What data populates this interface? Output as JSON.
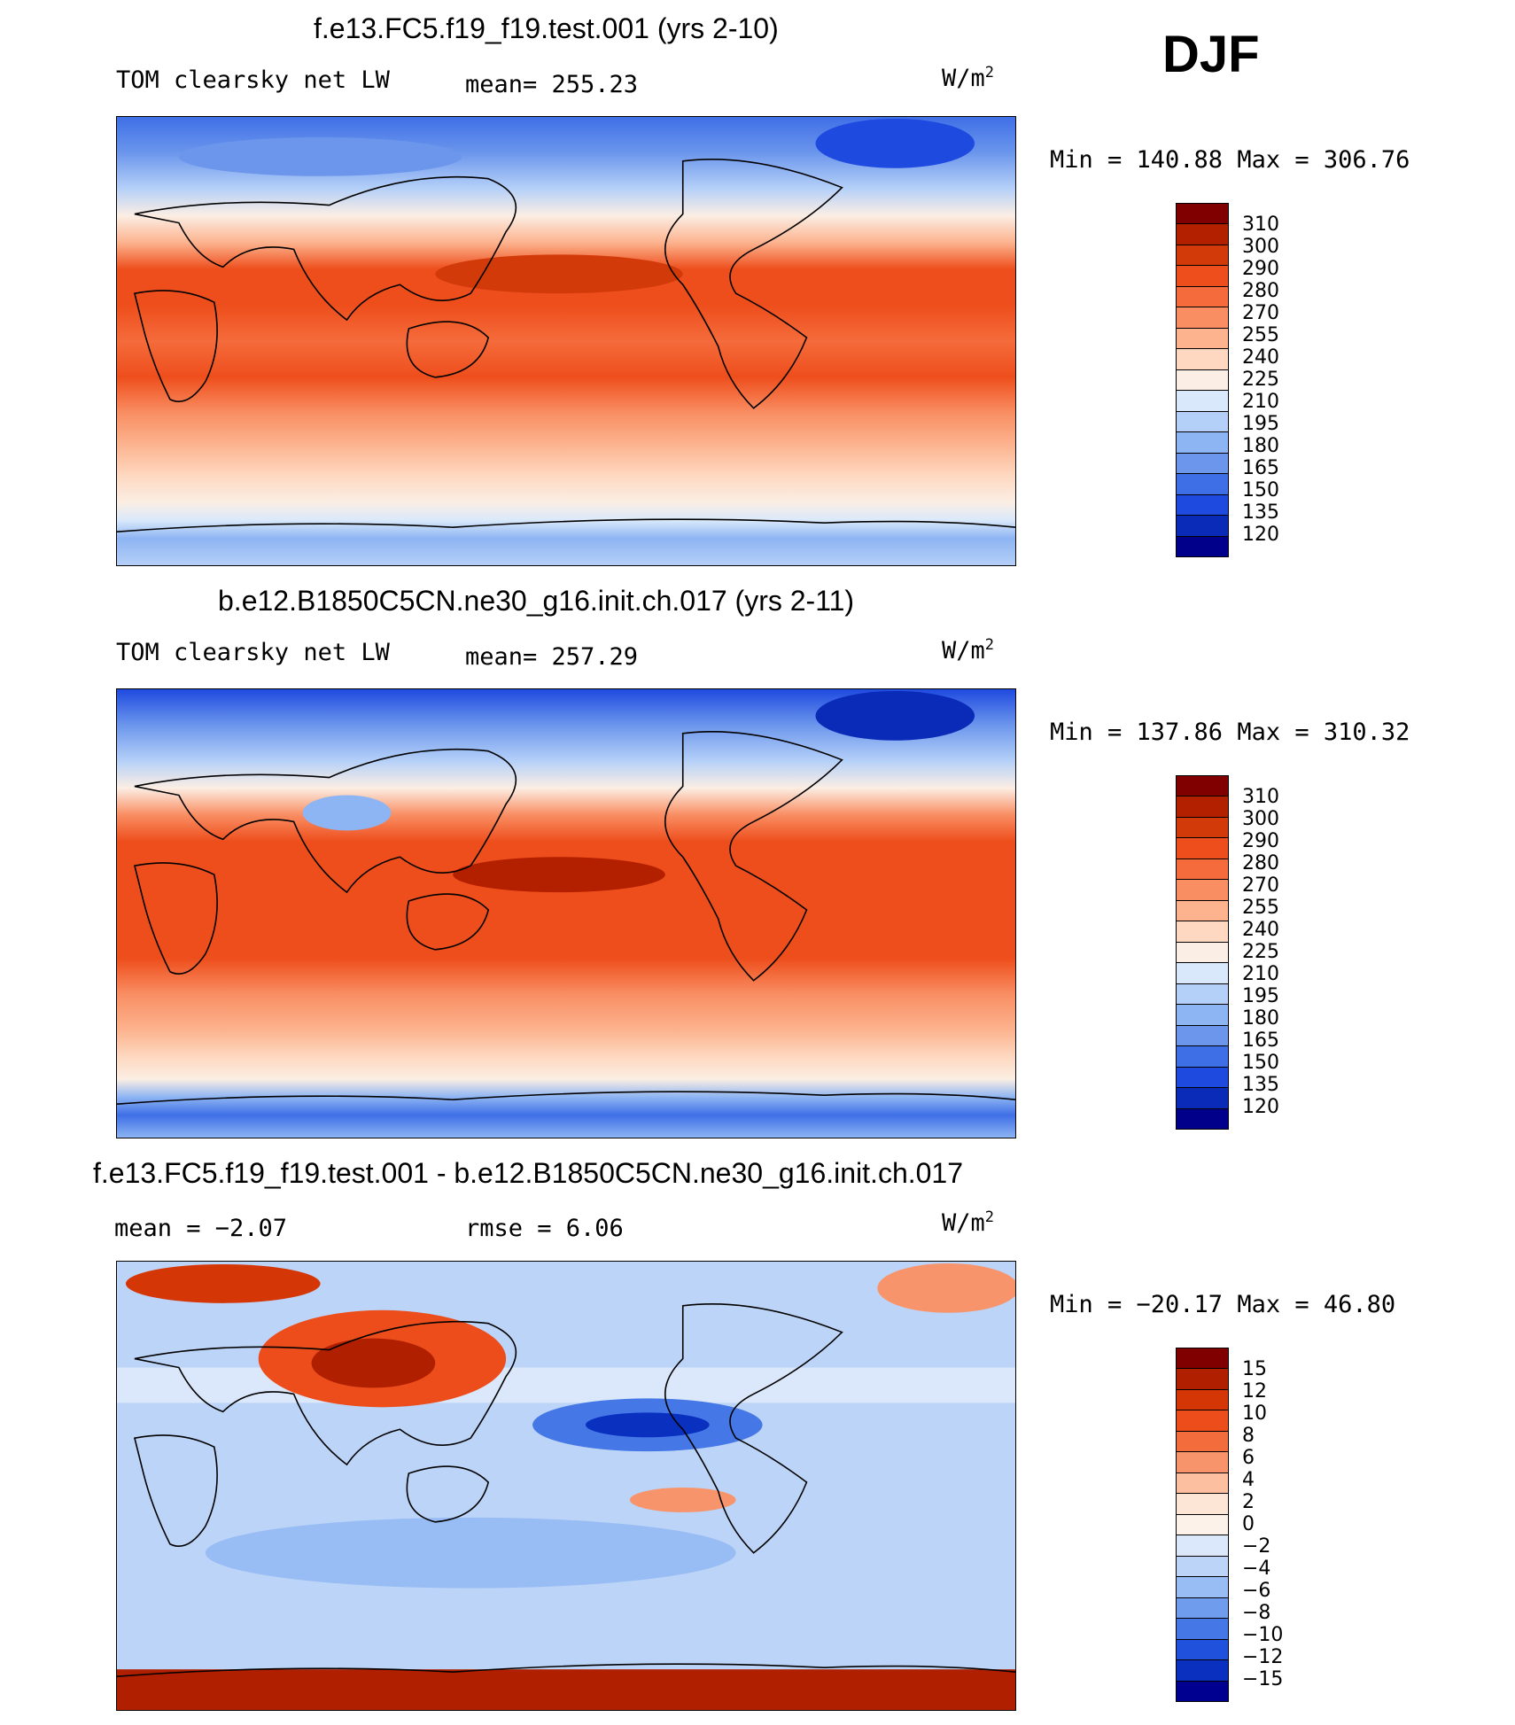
{
  "season": "DJF",
  "units": "W/m",
  "units_exp": "2",
  "panels": [
    {
      "title": "f.e13.FC5.f19_f19.test.001 (yrs 2-10)",
      "variable": "TOM clearsky net LW",
      "stat": "mean=  255.23",
      "minmax": "Min  =  140.88  Max  =  306.76",
      "colorbar_labels": [
        "310",
        "300",
        "290",
        "280",
        "270",
        "255",
        "240",
        "225",
        "210",
        "195",
        "180",
        "165",
        "150",
        "135",
        "120"
      ]
    },
    {
      "title": "b.e12.B1850C5CN.ne30_g16.init.ch.017 (yrs 2-11)",
      "variable": "TOM clearsky net LW",
      "stat": "mean=  257.29",
      "minmax": "Min  =  137.86  Max  =  310.32",
      "colorbar_labels": [
        "310",
        "300",
        "290",
        "280",
        "270",
        "255",
        "240",
        "225",
        "210",
        "195",
        "180",
        "165",
        "150",
        "135",
        "120"
      ]
    },
    {
      "title": "f.e13.FC5.f19_f19.test.001 - b.e12.B1850C5CN.ne30_g16.init.ch.017",
      "variable": "mean  =    −2.07",
      "stat": "rmse  =     6.06",
      "minmax": "Min  =  −20.17  Max  =    46.80",
      "colorbar_labels": [
        "15",
        "12",
        "10",
        "8",
        "6",
        "4",
        "2",
        "0",
        "−2",
        "−4",
        "−6",
        "−8",
        "−10",
        "−12",
        "−15"
      ]
    }
  ],
  "colors": {
    "abs_scale": [
      "#800000",
      "#b22000",
      "#d33a0a",
      "#ee4e1c",
      "#f56b3b",
      "#f98e63",
      "#fcb38e",
      "#fed8c0",
      "#fbeee4",
      "#d9e9fb",
      "#b5d0f8",
      "#8db4f3",
      "#6b96ec",
      "#3f6fe6",
      "#1f4ae0",
      "#0a2ab8",
      "#00008a"
    ],
    "diff_scale": [
      "#800000",
      "#b01f00",
      "#d53605",
      "#ed4d1a",
      "#f36c3b",
      "#f8946b",
      "#fcbfa0",
      "#fde6d6",
      "#fdf2ea",
      "#dbe8fb",
      "#bcd4f8",
      "#98bcf4",
      "#6f9ced",
      "#4578e6",
      "#1f51dd",
      "#0a30c0",
      "#000090"
    ]
  }
}
